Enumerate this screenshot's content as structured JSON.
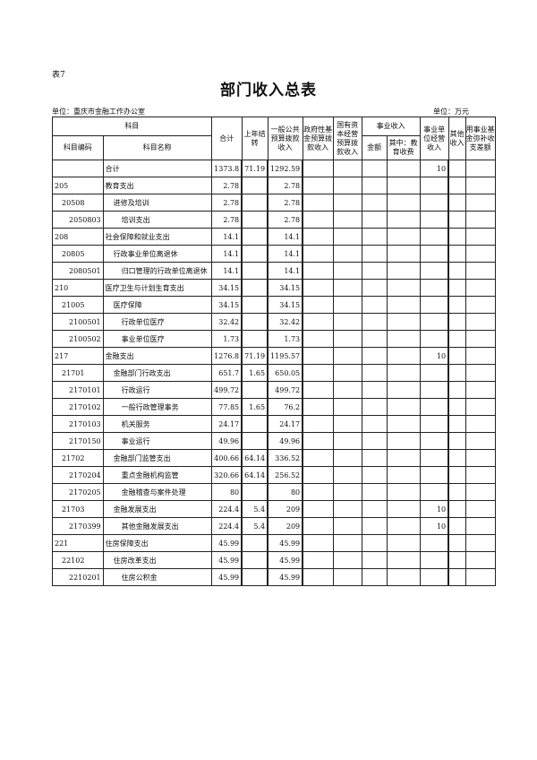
{
  "table_no": "表7",
  "title": "部门收入总表",
  "unit_left": "单位：重庆市金融工作办公室",
  "unit_right": "单位：万元",
  "headers": {
    "subject": "科目",
    "code": "科目编码",
    "name": "科目名称",
    "total": "合计",
    "carryover": "上年结转",
    "general": "一般公共预算拨款收入",
    "gov_fund": "政府性基金预算拨款收入",
    "state_capital": "国有资本经营预算拨款收入",
    "business": "事业收入",
    "amount": "金额",
    "edu": "其中：教育收费",
    "operating": "事业单位经营收入",
    "other": "其他收入",
    "fund_cover": "用事业基金弥补收支差额"
  },
  "rows": [
    {
      "code": "",
      "name": "合计",
      "level": 0,
      "total": "1373.8",
      "carry": "71.19",
      "general": "1292.59",
      "operating": "10"
    },
    {
      "code": "205",
      "name": "教育支出",
      "level": 0,
      "total": "2.78",
      "carry": "",
      "general": "2.78",
      "operating": ""
    },
    {
      "code": "20508",
      "name": "进修及培训",
      "level": 1,
      "total": "2.78",
      "carry": "",
      "general": "2.78",
      "operating": ""
    },
    {
      "code": "2050803",
      "name": "培训支出",
      "level": 2,
      "total": "2.78",
      "carry": "",
      "general": "2.78",
      "operating": ""
    },
    {
      "code": "208",
      "name": "社会保障和就业支出",
      "level": 0,
      "total": "14.1",
      "carry": "",
      "general": "14.1",
      "operating": ""
    },
    {
      "code": "20805",
      "name": "行政事业单位离退休",
      "level": 1,
      "total": "14.1",
      "carry": "",
      "general": "14.1",
      "operating": ""
    },
    {
      "code": "2080501",
      "name": "归口管理的行政单位离退休",
      "level": 2,
      "total": "14.1",
      "carry": "",
      "general": "14.1",
      "operating": ""
    },
    {
      "code": "210",
      "name": "医疗卫生与计划生育支出",
      "level": 0,
      "total": "34.15",
      "carry": "",
      "general": "34.15",
      "operating": ""
    },
    {
      "code": "21005",
      "name": "医疗保障",
      "level": 1,
      "total": "34.15",
      "carry": "",
      "general": "34.15",
      "operating": ""
    },
    {
      "code": "2100501",
      "name": "行政单位医疗",
      "level": 2,
      "total": "32.42",
      "carry": "",
      "general": "32.42",
      "operating": ""
    },
    {
      "code": "2100502",
      "name": "事业单位医疗",
      "level": 2,
      "total": "1.73",
      "carry": "",
      "general": "1.73",
      "operating": ""
    },
    {
      "code": "217",
      "name": "金融支出",
      "level": 0,
      "total": "1276.8",
      "carry": "71.19",
      "general": "1195.57",
      "operating": "10"
    },
    {
      "code": "21701",
      "name": "金融部门行政支出",
      "level": 1,
      "total": "651.7",
      "carry": "1.65",
      "general": "650.05",
      "operating": ""
    },
    {
      "code": "2170101",
      "name": "行政运行",
      "level": 2,
      "total": "499.72",
      "carry": "",
      "general": "499.72",
      "operating": ""
    },
    {
      "code": "2170102",
      "name": "一般行政管理事务",
      "level": 2,
      "total": "77.85",
      "carry": "1.65",
      "general": "76.2",
      "operating": ""
    },
    {
      "code": "2170103",
      "name": "机关服务",
      "level": 2,
      "total": "24.17",
      "carry": "",
      "general": "24.17",
      "operating": ""
    },
    {
      "code": "2170150",
      "name": "事业运行",
      "level": 2,
      "total": "49.96",
      "carry": "",
      "general": "49.96",
      "operating": ""
    },
    {
      "code": "21702",
      "name": "金融部门监管支出",
      "level": 1,
      "total": "400.66",
      "carry": "64.14",
      "general": "336.52",
      "operating": ""
    },
    {
      "code": "2170204",
      "name": "重点金融机构监管",
      "level": 2,
      "total": "320.66",
      "carry": "64.14",
      "general": "256.52",
      "operating": ""
    },
    {
      "code": "2170205",
      "name": "金融稽查与案件处理",
      "level": 2,
      "total": "80",
      "carry": "",
      "general": "80",
      "operating": ""
    },
    {
      "code": "21703",
      "name": "金融发展支出",
      "level": 1,
      "total": "224.4",
      "carry": "5.4",
      "general": "209",
      "operating": "10"
    },
    {
      "code": "2170399",
      "name": "其他金融发展支出",
      "level": 2,
      "total": "224.4",
      "carry": "5.4",
      "general": "209",
      "operating": "10"
    },
    {
      "code": "221",
      "name": "住房保障支出",
      "level": 0,
      "total": "45.99",
      "carry": "",
      "general": "45.99",
      "operating": ""
    },
    {
      "code": "22102",
      "name": "住房改革支出",
      "level": 1,
      "total": "45.99",
      "carry": "",
      "general": "45.99",
      "operating": ""
    },
    {
      "code": "2210201",
      "name": "住房公积金",
      "level": 2,
      "total": "45.99",
      "carry": "",
      "general": "45.99",
      "operating": ""
    }
  ]
}
